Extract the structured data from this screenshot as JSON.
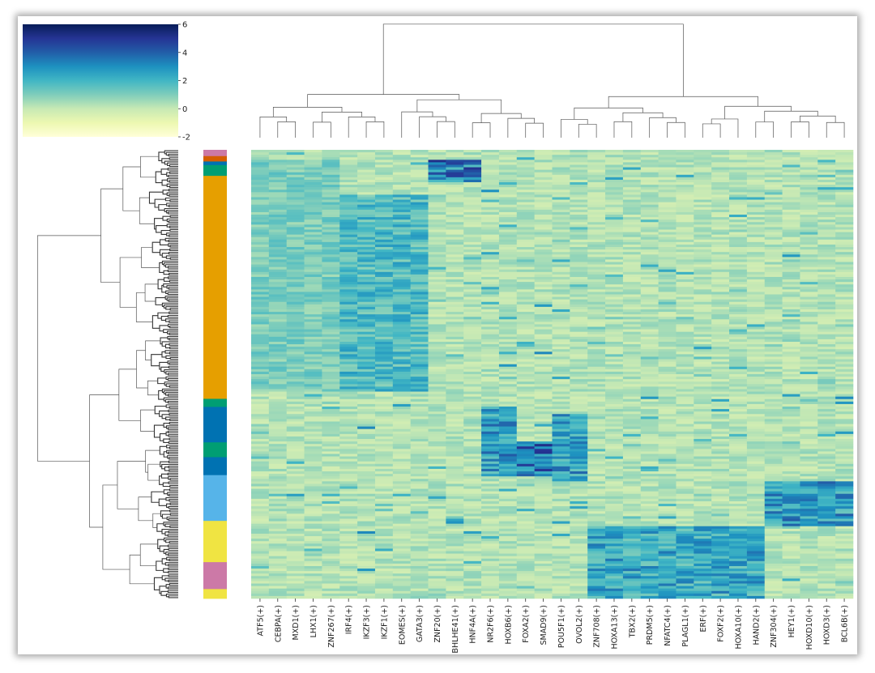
{
  "chart_data": {
    "type": "heatmap",
    "title": "",
    "xlabel": "",
    "ylabel": "",
    "colormap": "YlGnBu",
    "colorbar": {
      "vmin": -2,
      "vmax": 6,
      "ticks": [
        "-2",
        "0",
        "2",
        "4",
        "6"
      ]
    },
    "columns": [
      "ATF5(+)",
      "CEBPA(+)",
      "MXD1(+)",
      "LHX1(+)",
      "ZNF267(+)",
      "IRF4(+)",
      "IKZF3(+)",
      "IKZF1(+)",
      "EOMES(+)",
      "GATA3(+)",
      "ZNF20(+)",
      "BHLHE41(+)",
      "HNF4A(+)",
      "NR2F6(+)",
      "HOXB6(+)",
      "FOXA2(+)",
      "SMAD9(+)",
      "POU5F1(+)",
      "OVOL2(+)",
      "ZNF708(+)",
      "HOXA13(+)",
      "TBX2(+)",
      "PRDM5(+)",
      "NFATC4(+)",
      "PLAGL1(+)",
      "ERF(+)",
      "FOXF2(+)",
      "HOXA10(+)",
      "HAND2(+)",
      "ZNF304(+)",
      "HEY1(+)",
      "HOXD10(+)",
      "HOXD3(+)",
      "BCL6B(+)"
    ],
    "row_groups": [
      {
        "color": "#cc79a7",
        "fraction": 0.014
      },
      {
        "color": "#d55e00",
        "fraction": 0.012
      },
      {
        "color": "#0072b2",
        "fraction": 0.008
      },
      {
        "color": "#009e73",
        "fraction": 0.024
      },
      {
        "color": "#e69f00",
        "fraction": 0.497
      },
      {
        "color": "#009e73",
        "fraction": 0.018
      },
      {
        "color": "#0072b2",
        "fraction": 0.079
      },
      {
        "color": "#009e73",
        "fraction": 0.033
      },
      {
        "color": "#0072b2",
        "fraction": 0.04
      },
      {
        "color": "#56b4e9",
        "fraction": 0.102
      },
      {
        "color": "#f0e442",
        "fraction": 0.092
      },
      {
        "color": "#cc79a7",
        "fraction": 0.06
      },
      {
        "color": "#f0e442",
        "fraction": 0.021
      }
    ],
    "column_modules": [
      {
        "columns": [
          0,
          5
        ],
        "row_range": [
          0.02,
          0.54
        ],
        "level": 1.4
      },
      {
        "columns": [
          5,
          10
        ],
        "row_range": [
          0.1,
          0.54
        ],
        "level": 2.2
      },
      {
        "columns": [
          10,
          13
        ],
        "row_range": [
          0.02,
          0.07
        ],
        "level": 4.0
      },
      {
        "columns": [
          13,
          15
        ],
        "row_range": [
          0.57,
          0.73
        ],
        "level": 3.2
      },
      {
        "columns": [
          15,
          17
        ],
        "row_range": [
          0.65,
          0.73
        ],
        "level": 4.0
      },
      {
        "columns": [
          17,
          19
        ],
        "row_range": [
          0.59,
          0.74
        ],
        "level": 3.0
      },
      {
        "columns": [
          19,
          29
        ],
        "row_range": [
          0.84,
          1.0
        ],
        "level": 2.8
      },
      {
        "columns": [
          29,
          34
        ],
        "row_range": [
          0.74,
          0.84
        ],
        "level": 3.2
      }
    ]
  }
}
